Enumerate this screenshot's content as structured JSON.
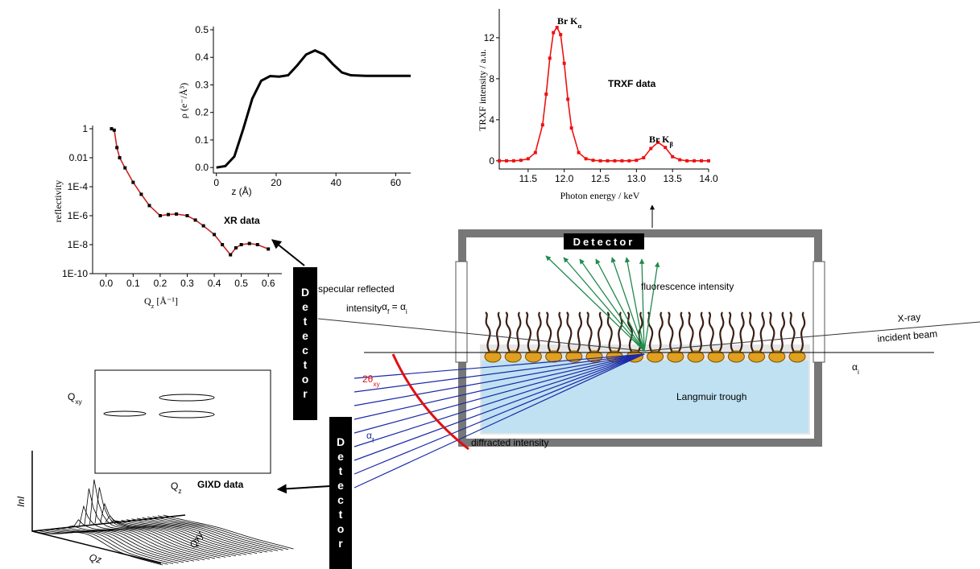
{
  "chart_data": [
    {
      "type": "line",
      "ylabel": "ρ (e⁻/Å³)",
      "xlabel": "z (Å)",
      "xlim": [
        -1,
        65
      ],
      "ylim": [
        -0.02,
        0.5
      ],
      "xticks": [
        0,
        20,
        40,
        60
      ],
      "yticks": [
        {
          "value": 0,
          "label": "0.0"
        },
        0.1,
        0.2,
        0.3,
        0.4,
        0.5
      ],
      "x": [
        0,
        3,
        6,
        9,
        12,
        15,
        18,
        21,
        24,
        27,
        30,
        33,
        36,
        39,
        42,
        45,
        50,
        55,
        60,
        65
      ],
      "series": [
        {
          "color": "#000000",
          "values": [
            0,
            0.005,
            0.04,
            0.14,
            0.25,
            0.315,
            0.332,
            0.33,
            0.335,
            0.37,
            0.41,
            0.425,
            0.41,
            0.375,
            0.345,
            0.335,
            0.333,
            0.333,
            0.333,
            0.333
          ]
        }
      ]
    },
    {
      "type": "line",
      "log_y": true,
      "annotation": "XR data",
      "ylabel": "reflectivity",
      "xlabel": [
        "Q",
        "z",
        " [Å⁻¹]"
      ],
      "xlim": [
        -0.05,
        0.65
      ],
      "ylim": [
        1e-10,
        1
      ],
      "xticks": [
        {
          "value": 0,
          "label": "0.0"
        },
        0.1,
        0.2,
        0.3,
        0.4,
        0.5,
        0.6
      ],
      "yticks": [
        1,
        0.01,
        {
          "value": 0.0001,
          "label": "1E-4"
        },
        {
          "value": 1e-06,
          "label": "1E-6"
        },
        {
          "value": 1e-08,
          "label": "1E-8"
        },
        {
          "value": 1e-10,
          "label": "1E-10"
        }
      ],
      "x": [
        0.02,
        0.03,
        0.04,
        0.05,
        0.07,
        0.1,
        0.13,
        0.16,
        0.2,
        0.23,
        0.26,
        0.3,
        0.33,
        0.36,
        0.4,
        0.43,
        0.46,
        0.48,
        0.5,
        0.53,
        0.56,
        0.6
      ],
      "series": [
        {
          "color": "#cc2222",
          "marker_color": "#000000",
          "values": [
            1,
            0.8,
            0.05,
            0.01,
            0.002,
            0.0002,
            3e-05,
            5e-06,
            1e-06,
            1.2e-06,
            1.3e-06,
            1e-06,
            5e-07,
            2e-07,
            5e-08,
            1e-08,
            2e-09,
            6e-09,
            1e-08,
            1.2e-08,
            1e-08,
            5e-09
          ]
        }
      ]
    },
    {
      "type": "line",
      "annotation": "TRXF data",
      "peak_labels": [
        [
          "Br K",
          "α"
        ],
        [
          "Br K",
          "β"
        ]
      ],
      "ylabel": "TRXF intensity / a.u.",
      "xlabel": "Photon energy / keV",
      "xlim": [
        11.1,
        14.0
      ],
      "ylim": [
        -0.8,
        14.5
      ],
      "xticks": [
        11.5,
        {
          "value": 12,
          "label": "12.0"
        },
        12.5,
        {
          "value": 13,
          "label": "13.0"
        },
        13.5,
        {
          "value": 14,
          "label": "14.0"
        }
      ],
      "yticks": [
        0,
        4,
        8,
        12
      ],
      "x": [
        11.1,
        11.2,
        11.3,
        11.4,
        11.5,
        11.6,
        11.7,
        11.75,
        11.8,
        11.85,
        11.9,
        11.95,
        12.0,
        12.05,
        12.1,
        12.2,
        12.3,
        12.4,
        12.5,
        12.6,
        12.7,
        12.8,
        12.9,
        13.0,
        13.1,
        13.2,
        13.3,
        13.4,
        13.5,
        13.6,
        13.7,
        13.8,
        13.9,
        14.0
      ],
      "series": [
        {
          "color": "#ee1111",
          "marker_color": "#ee1111",
          "values": [
            0,
            0,
            0,
            0.05,
            0.2,
            0.8,
            3.5,
            6.5,
            10,
            12.5,
            13,
            12.3,
            9.5,
            6,
            3.2,
            0.8,
            0.2,
            0.05,
            0,
            0,
            0,
            0,
            0,
            0.05,
            0.3,
            1.2,
            1.8,
            1.3,
            0.4,
            0.1,
            0,
            0,
            0,
            0
          ]
        }
      ]
    }
  ],
  "diagram": {
    "detectors": [
      "Detector",
      "Detector",
      "Detector"
    ],
    "specular_1": "specular reflected",
    "specular_2": "intensity",
    "reflection_angle": [
      "α",
      "f",
      " = α",
      "i"
    ],
    "fluorescence": "fluorescence intensity",
    "beam_1": "X-ray",
    "beam_2": "incident beam",
    "incident_angle": [
      "α",
      "i"
    ],
    "diffraction_angle": [
      "2θ",
      "xy"
    ],
    "exit_angle": [
      "α",
      "f"
    ],
    "trough": "Langmuir trough",
    "diffracted": "diffracted intensity",
    "gixd_title": "GIXD data",
    "contour_y": [
      "Q",
      "xy"
    ],
    "contour_x": [
      "Q",
      "z"
    ],
    "waterfall_z": "InI",
    "waterfall_x": "Qz",
    "waterfall_y": "Qxy"
  }
}
